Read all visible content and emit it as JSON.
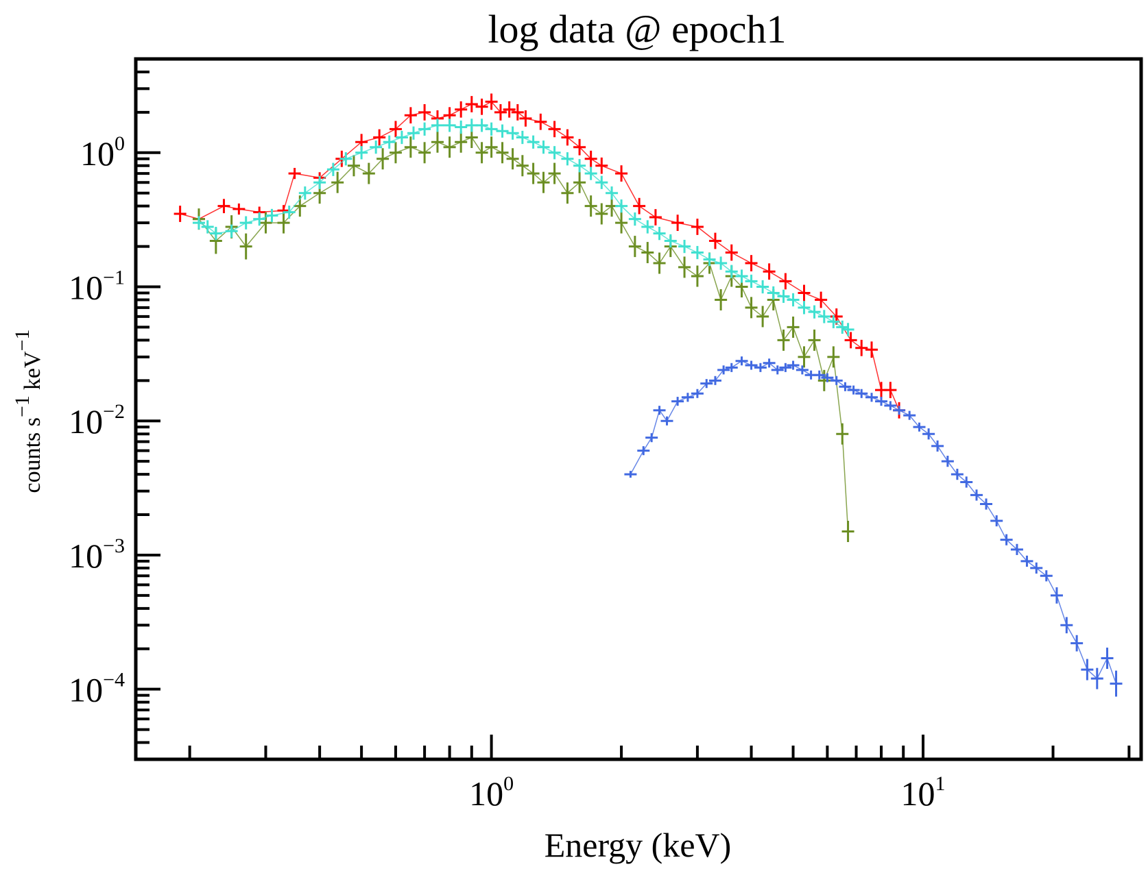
{
  "chart_data": {
    "type": "scatter",
    "title": "log data @ epoch1",
    "xlabel": "Energy (keV)",
    "ylabel": {
      "base1": "counts s",
      "exp1": "−1",
      "base2": "keV",
      "exp2": "−1"
    },
    "x_scale": "log",
    "y_scale": "log",
    "xlim": [
      0.15,
      32
    ],
    "ylim": [
      3e-05,
      5
    ],
    "x_ticks": [
      {
        "base": "10",
        "exp": "0",
        "value": 1
      },
      {
        "base": "10",
        "exp": "1",
        "value": 10
      }
    ],
    "y_ticks": [
      {
        "base": "10",
        "exp": "0",
        "value": 1
      },
      {
        "base": "10",
        "exp": "−1",
        "value": 0.1
      },
      {
        "base": "10",
        "exp": "−2",
        "value": 0.01
      },
      {
        "base": "10",
        "exp": "−3",
        "value": 0.001
      },
      {
        "base": "10",
        "exp": "−4",
        "value": 0.0001
      }
    ],
    "grid": false,
    "series": [
      {
        "color": "#ff0000",
        "x": [
          0.19,
          0.21,
          0.24,
          0.26,
          0.29,
          0.33,
          0.35,
          0.4,
          0.45,
          0.5,
          0.55,
          0.6,
          0.65,
          0.7,
          0.75,
          0.8,
          0.85,
          0.9,
          0.95,
          1.0,
          1.05,
          1.1,
          1.15,
          1.2,
          1.3,
          1.4,
          1.5,
          1.6,
          1.7,
          1.8,
          2.0,
          2.2,
          2.4,
          2.7,
          3.0,
          3.3,
          3.6,
          4.0,
          4.4,
          4.8,
          5.3,
          5.8,
          6.3,
          6.8,
          7.2,
          7.6,
          8.0,
          8.4,
          8.8
        ],
        "y": [
          0.35,
          0.32,
          0.4,
          0.38,
          0.36,
          0.37,
          0.7,
          0.65,
          0.9,
          1.2,
          1.3,
          1.5,
          1.9,
          2.0,
          1.8,
          1.9,
          2.1,
          2.3,
          2.2,
          2.4,
          2.0,
          2.1,
          2.0,
          1.8,
          1.7,
          1.5,
          1.3,
          1.1,
          0.9,
          0.8,
          0.7,
          0.4,
          0.33,
          0.3,
          0.28,
          0.22,
          0.18,
          0.15,
          0.13,
          0.11,
          0.09,
          0.08,
          0.06,
          0.04,
          0.035,
          0.034,
          0.017,
          0.017,
          0.012
        ],
        "yerr": [
          0.15,
          0.12,
          0.13,
          0.1,
          0.1,
          0.1,
          0.1,
          0.1,
          0.15,
          0.15,
          0.15,
          0.15,
          0.15,
          0.15,
          0.15,
          0.15,
          0.15,
          0.15,
          0.15,
          0.15,
          0.15,
          0.15,
          0.15,
          0.15,
          0.15,
          0.15,
          0.15,
          0.15,
          0.15,
          0.15,
          0.15,
          0.15,
          0.15,
          0.15,
          0.15,
          0.15,
          0.15,
          0.15,
          0.15,
          0.15,
          0.15,
          0.15,
          0.15,
          0.15,
          0.15,
          0.15,
          0.15,
          0.15,
          0.15
        ]
      },
      {
        "color": "#6b8e23",
        "x": [
          0.21,
          0.23,
          0.25,
          0.27,
          0.3,
          0.33,
          0.36,
          0.4,
          0.44,
          0.48,
          0.52,
          0.56,
          0.6,
          0.65,
          0.7,
          0.75,
          0.8,
          0.85,
          0.9,
          0.95,
          1.0,
          1.06,
          1.12,
          1.18,
          1.25,
          1.32,
          1.4,
          1.5,
          1.6,
          1.7,
          1.8,
          1.9,
          2.0,
          2.15,
          2.3,
          2.45,
          2.6,
          2.8,
          3.0,
          3.2,
          3.4,
          3.6,
          3.8,
          4.0,
          4.25,
          4.5,
          4.75,
          5.0,
          5.3,
          5.6,
          5.9,
          6.2,
          6.5,
          6.7
        ],
        "y": [
          0.32,
          0.22,
          0.28,
          0.2,
          0.3,
          0.3,
          0.4,
          0.5,
          0.6,
          0.8,
          0.7,
          0.9,
          1.0,
          1.1,
          1.0,
          1.2,
          1.1,
          1.2,
          1.3,
          1.0,
          1.1,
          1.0,
          0.9,
          0.8,
          0.7,
          0.6,
          0.7,
          0.5,
          0.6,
          0.4,
          0.35,
          0.4,
          0.3,
          0.2,
          0.18,
          0.15,
          0.2,
          0.14,
          0.12,
          0.15,
          0.08,
          0.12,
          0.1,
          0.07,
          0.06,
          0.08,
          0.04,
          0.05,
          0.03,
          0.04,
          0.02,
          0.03,
          0.008,
          0.0015
        ],
        "yerr": [
          0.2,
          0.25,
          0.22,
          0.25,
          0.2,
          0.2,
          0.2,
          0.2,
          0.2,
          0.2,
          0.2,
          0.2,
          0.2,
          0.2,
          0.2,
          0.2,
          0.2,
          0.2,
          0.2,
          0.2,
          0.2,
          0.2,
          0.2,
          0.2,
          0.2,
          0.2,
          0.2,
          0.2,
          0.2,
          0.2,
          0.2,
          0.2,
          0.2,
          0.2,
          0.2,
          0.2,
          0.2,
          0.2,
          0.2,
          0.2,
          0.2,
          0.2,
          0.2,
          0.2,
          0.2,
          0.2,
          0.2,
          0.2,
          0.2,
          0.2,
          0.2,
          0.2,
          0.2,
          0.2
        ]
      },
      {
        "color": "#40e0d0",
        "x": [
          0.21,
          0.22,
          0.23,
          0.25,
          0.27,
          0.29,
          0.31,
          0.34,
          0.37,
          0.4,
          0.43,
          0.46,
          0.5,
          0.54,
          0.58,
          0.62,
          0.66,
          0.7,
          0.75,
          0.8,
          0.85,
          0.9,
          0.95,
          1.0,
          1.06,
          1.12,
          1.18,
          1.25,
          1.32,
          1.4,
          1.5,
          1.6,
          1.7,
          1.8,
          1.9,
          2.0,
          2.15,
          2.3,
          2.45,
          2.6,
          2.8,
          3.0,
          3.2,
          3.4,
          3.6,
          3.8,
          4.0,
          4.25,
          4.5,
          4.75,
          5.0,
          5.3,
          5.6,
          5.9,
          6.2,
          6.5,
          6.7
        ],
        "y": [
          0.3,
          0.28,
          0.25,
          0.26,
          0.3,
          0.32,
          0.34,
          0.36,
          0.5,
          0.6,
          0.75,
          0.9,
          1.0,
          1.1,
          1.2,
          1.3,
          1.4,
          1.5,
          1.6,
          1.6,
          1.55,
          1.6,
          1.6,
          1.5,
          1.45,
          1.4,
          1.3,
          1.2,
          1.1,
          1.0,
          0.9,
          0.8,
          0.7,
          0.6,
          0.5,
          0.4,
          0.32,
          0.28,
          0.25,
          0.22,
          0.2,
          0.18,
          0.16,
          0.15,
          0.13,
          0.12,
          0.11,
          0.1,
          0.09,
          0.085,
          0.08,
          0.07,
          0.065,
          0.06,
          0.055,
          0.05,
          0.048
        ],
        "yerr": [
          0.12,
          0.12,
          0.12,
          0.12,
          0.12,
          0.12,
          0.12,
          0.12,
          0.12,
          0.12,
          0.12,
          0.12,
          0.12,
          0.12,
          0.12,
          0.12,
          0.12,
          0.12,
          0.12,
          0.12,
          0.12,
          0.12,
          0.12,
          0.12,
          0.12,
          0.12,
          0.12,
          0.12,
          0.12,
          0.12,
          0.12,
          0.12,
          0.12,
          0.12,
          0.12,
          0.12,
          0.12,
          0.12,
          0.12,
          0.12,
          0.12,
          0.12,
          0.12,
          0.12,
          0.12,
          0.12,
          0.12,
          0.12,
          0.12,
          0.12,
          0.12,
          0.12,
          0.12,
          0.12,
          0.12,
          0.12,
          0.12
        ]
      },
      {
        "color": "#4169e1",
        "x": [
          2.1,
          2.25,
          2.35,
          2.45,
          2.55,
          2.7,
          2.85,
          3.0,
          3.15,
          3.3,
          3.45,
          3.6,
          3.8,
          4.0,
          4.2,
          4.4,
          4.6,
          4.8,
          5.0,
          5.25,
          5.5,
          5.75,
          6.0,
          6.3,
          6.6,
          6.9,
          7.2,
          7.6,
          8.0,
          8.4,
          8.8,
          9.3,
          9.8,
          10.3,
          10.8,
          11.4,
          12.0,
          12.6,
          13.3,
          14.0,
          14.8,
          15.6,
          16.5,
          17.4,
          18.3,
          19.3,
          20.4,
          21.5,
          22.7,
          24.0,
          25.3,
          26.7,
          28.0
        ],
        "y": [
          0.004,
          0.006,
          0.0075,
          0.012,
          0.01,
          0.014,
          0.015,
          0.016,
          0.019,
          0.02,
          0.024,
          0.025,
          0.028,
          0.026,
          0.025,
          0.027,
          0.024,
          0.025,
          0.026,
          0.024,
          0.022,
          0.022,
          0.021,
          0.02,
          0.018,
          0.017,
          0.016,
          0.015,
          0.014,
          0.013,
          0.012,
          0.011,
          0.009,
          0.008,
          0.0065,
          0.005,
          0.004,
          0.0035,
          0.0028,
          0.0024,
          0.0018,
          0.0013,
          0.0011,
          0.0009,
          0.0008,
          0.0007,
          0.0005,
          0.0003,
          0.00022,
          0.00014,
          0.00012,
          0.00017,
          0.00011
        ],
        "yerr": [
          0.06,
          0.08,
          0.08,
          0.08,
          0.08,
          0.08,
          0.08,
          0.08,
          0.08,
          0.08,
          0.08,
          0.08,
          0.08,
          0.08,
          0.08,
          0.08,
          0.08,
          0.08,
          0.08,
          0.08,
          0.08,
          0.08,
          0.08,
          0.08,
          0.08,
          0.08,
          0.08,
          0.08,
          0.08,
          0.08,
          0.08,
          0.08,
          0.08,
          0.1,
          0.1,
          0.1,
          0.1,
          0.1,
          0.1,
          0.1,
          0.1,
          0.1,
          0.1,
          0.1,
          0.1,
          0.1,
          0.15,
          0.15,
          0.15,
          0.2,
          0.2,
          0.2,
          0.25
        ]
      }
    ]
  }
}
